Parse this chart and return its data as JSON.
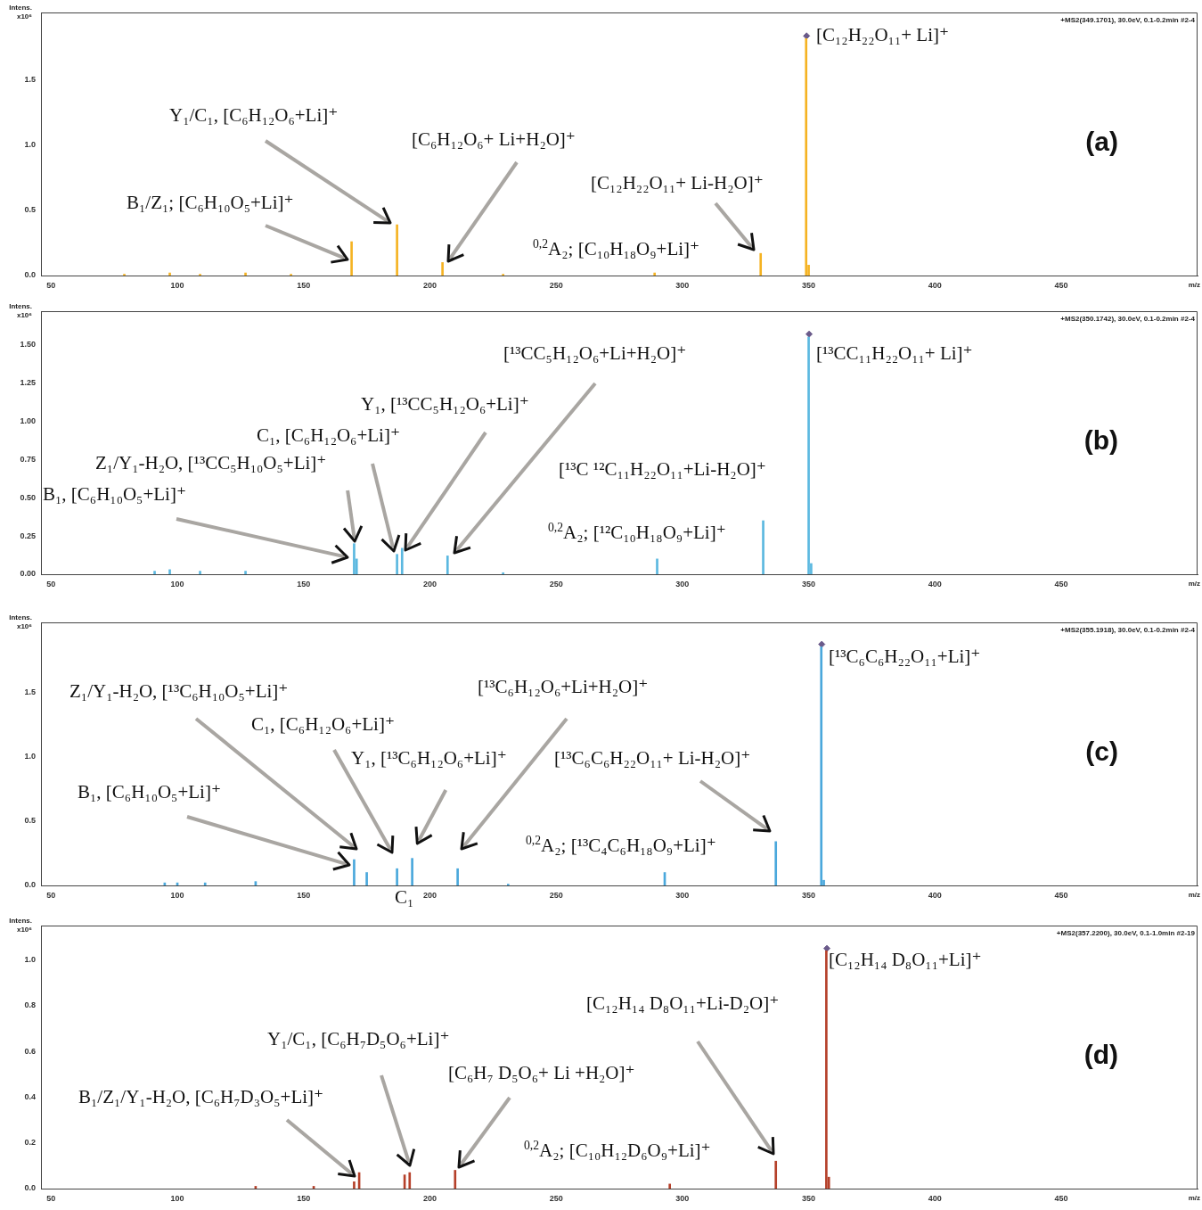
{
  "chart_data": [
    {
      "type": "bar",
      "title": "(a)",
      "subtitle": "+MS2(349.1701), 30.0eV, 0.1-0.2min #2-4",
      "xlabel": "m/z",
      "ylabel": "Intens.\nx10⁶",
      "xlim": [
        46,
        504
      ],
      "xticks": [
        50,
        100,
        150,
        200,
        250,
        300,
        350,
        400,
        450
      ],
      "ylim": [
        0,
        2.02
      ],
      "yticks": [
        {
          "value": 0,
          "label": "0.0"
        },
        0.5,
        {
          "value": 1,
          "label": "1.0"
        },
        1.5
      ],
      "grid": false,
      "legend": false,
      "marker": "diamond",
      "series": [
        {
          "type": "bar",
          "color": "#f5b323",
          "x": [
            79,
            97,
            109,
            127,
            145,
            169,
            187,
            205,
            229,
            289,
            331,
            349,
            350
          ],
          "values": [
            0.01,
            0.02,
            0.01,
            0.02,
            0.01,
            0.26,
            0.39,
            0.1,
            0.01,
            0.02,
            0.17,
            1.82,
            0.08
          ]
        },
        {
          "type": "scatter",
          "color": "#6a5a8a",
          "x": [
            349.17
          ],
          "values": [
            1.84
          ]
        }
      ],
      "annotations": [
        "[C₁₂H₂₂O₁₁+ Li]⁺",
        "Y₁/C₁, [C₆H₁₂O₆+Li]⁺",
        "[C₆H₁₂O₆+ Li+H₂O]⁺",
        "[C₁₂H₂₂O₁₁+ Li-H₂O]⁺",
        "B₁/Z₁; [C₆H₁₀O₅+Li]⁺",
        "$^{0,2}$A₂; [C₁₀H₁₈O₉+Li]⁺"
      ]
    },
    {
      "type": "bar",
      "title": "(b)",
      "subtitle": "+MS2(350.1742), 30.0eV, 0.1-0.2min #2-4",
      "xlabel": "m/z",
      "ylabel": "Intens.\nx10⁶",
      "xlim": [
        46,
        504
      ],
      "xticks": [
        50,
        100,
        150,
        200,
        250,
        300,
        350,
        400,
        450
      ],
      "ylim": [
        0,
        1.72
      ],
      "yticks": [
        {
          "value": 0,
          "label": "0.00"
        },
        0.25,
        {
          "value": 0.5,
          "label": "0.50"
        },
        0.75,
        {
          "value": 1,
          "label": "1.00"
        },
        1.25,
        {
          "value": 1.5,
          "label": "1.50"
        }
      ],
      "grid": false,
      "legend": false,
      "marker": "diamond",
      "series": [
        {
          "type": "bar",
          "color": "#5bb8e0",
          "x": [
            91,
            97,
            109,
            127,
            170,
            171,
            187,
            189,
            207,
            229,
            290,
            332,
            350,
            351
          ],
          "values": [
            0.02,
            0.03,
            0.02,
            0.02,
            0.2,
            0.1,
            0.13,
            0.17,
            0.12,
            0.01,
            0.1,
            0.35,
            1.55,
            0.07
          ]
        },
        {
          "type": "scatter",
          "color": "#6a5a8a",
          "x": [
            350.17
          ],
          "values": [
            1.57
          ]
        }
      ],
      "annotations": [
        "[¹³CC₁₁H₂₂O₁₁+ Li]⁺",
        "[¹³CC₅H₁₂O₆+Li+H₂O]⁺",
        "Y₁, [¹³CC₅H₁₂O₆+Li]⁺",
        "C₁, [C₆H₁₂O₆+Li]⁺",
        "Z₁/Y₁-H₂O, [¹³CC₅H₁₀O₅+Li]⁺",
        "B₁, [C₆H₁₀O₅+Li]⁺",
        "[¹³C ¹²C₁₁H₂₂O₁₁+Li-H₂O]⁺",
        "$^{0,2}$A₂; [¹²C₁₀H₁₈O₉+Li]⁺"
      ]
    },
    {
      "type": "bar",
      "title": "(c)",
      "subtitle": "+MS2(355.1918), 30.0eV, 0.1-0.2min #2-4",
      "xlabel": "m/z",
      "ylabel": "Intens.\nx10⁶",
      "xlim": [
        46,
        504
      ],
      "xticks": [
        50,
        100,
        150,
        200,
        250,
        300,
        350,
        400,
        450
      ],
      "ylim": [
        0,
        2.04
      ],
      "yticks": [
        {
          "value": 0,
          "label": "0.0"
        },
        0.5,
        {
          "value": 1,
          "label": "1.0"
        },
        1.5
      ],
      "grid": false,
      "legend": false,
      "marker": "diamond",
      "series": [
        {
          "type": "bar",
          "color": "#4aa8dc",
          "x": [
            95,
            100,
            111,
            131,
            170,
            175,
            187,
            193,
            211,
            231,
            293,
            337,
            355,
            356
          ],
          "values": [
            0.02,
            0.02,
            0.02,
            0.03,
            0.2,
            0.1,
            0.13,
            0.21,
            0.13,
            0.01,
            0.1,
            0.34,
            1.85,
            0.04
          ]
        },
        {
          "type": "scatter",
          "color": "#6a5a8a",
          "x": [
            355.19
          ],
          "values": [
            1.87
          ]
        }
      ],
      "annotations": [
        "[¹³C₆C₆H₂₂O₁₁+Li]⁺",
        "Z₁/Y₁-H₂O, [¹³C₆H₁₀O₅+Li]⁺",
        "[¹³C₆H₁₂O₆+Li+H₂O]⁺",
        "C₁, [C₆H₁₂O₆+Li]⁺",
        "Y₁, [¹³C₆H₁₂O₆+Li]⁺",
        "[¹³C₆C₆H₂₂O₁₁+ Li-H₂O]⁺",
        "B₁, [C₆H₁₀O₅+Li]⁺",
        "$^{0,2}$A₂; [¹³C₄C₆H₁₈O₉+Li]⁺",
        "C₁"
      ]
    },
    {
      "type": "bar",
      "title": "(d)",
      "subtitle": "+MS2(357.2200), 30.0eV, 0.1-1.0min #2-19",
      "xlabel": "m/z",
      "ylabel": "Intens.\nx10⁶",
      "xlim": [
        46,
        504
      ],
      "xticks": [
        50,
        100,
        150,
        200,
        250,
        300,
        350,
        400,
        450
      ],
      "ylim": [
        0,
        1.15
      ],
      "yticks": [
        {
          "value": 0,
          "label": "0.0"
        },
        0.2,
        0.4,
        0.6,
        0.8,
        {
          "value": 1,
          "label": "1.0"
        }
      ],
      "grid": false,
      "legend": false,
      "marker": "diamond",
      "series": [
        {
          "type": "bar",
          "color": "#b5402a",
          "x": [
            131,
            154,
            170,
            172,
            190,
            192,
            210,
            295,
            337,
            357,
            358
          ],
          "values": [
            0.01,
            0.01,
            0.03,
            0.07,
            0.06,
            0.07,
            0.08,
            0.02,
            0.12,
            1.04,
            0.05
          ]
        },
        {
          "type": "scatter",
          "color": "#6a5a8a",
          "x": [
            357.22
          ],
          "values": [
            1.05
          ]
        }
      ],
      "annotations": [
        "[C₁₂H₁₄ D₈O₁₁+Li]⁺",
        "[C₁₂H₁₄ D₈O₁₁+Li-D₂O]⁺",
        "Y₁/C₁, [C₆H₇D₅O₆+Li]⁺",
        "[C₆H₇ D₅O₆+ Li +H₂O]⁺",
        "B₁/Z₁/Y₁-H₂O,  [C₆H₇D₃O₅+Li]⁺",
        "$^{0,2}$A₂; [C₁₀H₁₂D₆O₉+Li]⁺"
      ]
    }
  ]
}
